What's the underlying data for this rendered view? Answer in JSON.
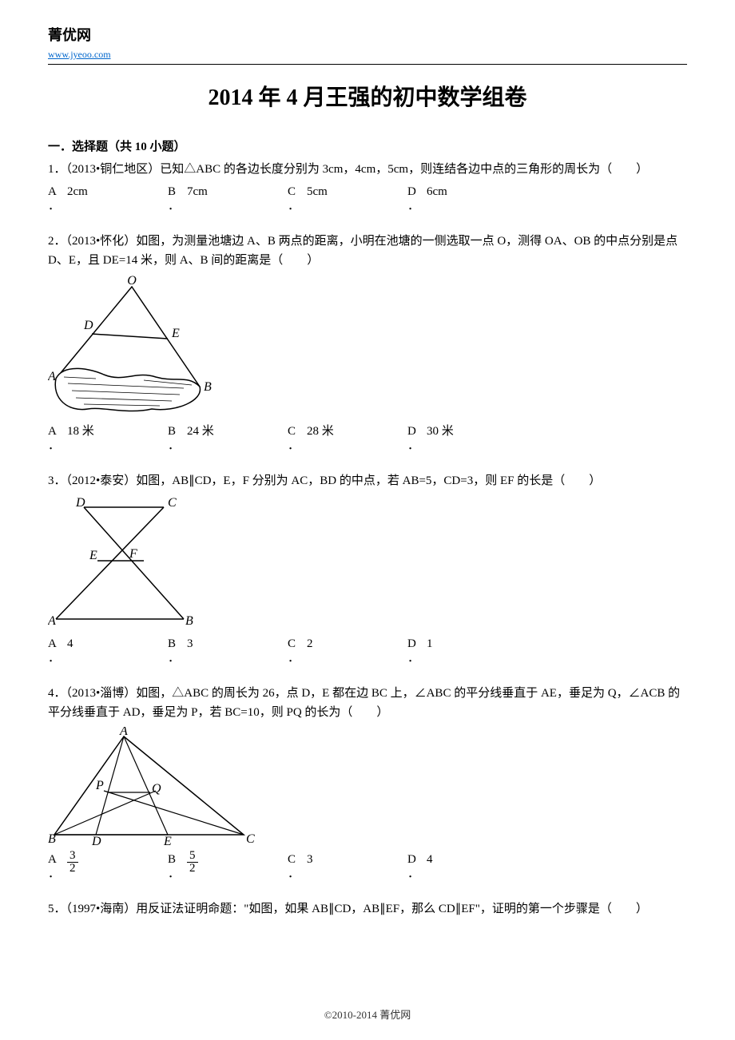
{
  "header": {
    "site_name": "菁优网",
    "site_url": "www.jyeoo.com"
  },
  "title": "2014 年 4 月王强的初中数学组卷",
  "section_heading": "一．选择题（共 10 小题）",
  "questions": [
    {
      "text": "1．（2013•铜仁地区）已知△ABC 的各边长度分别为 3cm，4cm，5cm，则连结各边中点的三角形的周长为（　　）",
      "choices": [
        "2cm",
        "7cm",
        "5cm",
        "6cm"
      ],
      "figure": null
    },
    {
      "text": "2．（2013•怀化）如图，为测量池塘边 A、B 两点的距离，小明在池塘的一侧选取一点 O，测得 OA、OB 的中点分别是点 D、E，且 DE=14 米，则 A、B 间的距离是（　　）",
      "choices": [
        "18 米",
        "24 米",
        "28 米",
        "30 米"
      ],
      "figure": "pond"
    },
    {
      "text": "3．（2012•泰安）如图，AB∥CD，E，F 分别为 AC，BD 的中点，若 AB=5，CD=3，则 EF 的长是（　　）",
      "choices": [
        "4",
        "3",
        "2",
        "1"
      ],
      "figure": "trapezoid"
    },
    {
      "text": "4．（2013•淄博）如图，△ABC 的周长为 26，点 D，E 都在边 BC 上，∠ABC 的平分线垂直于 AE，垂足为 Q，∠ACB 的平分线垂直于 AD，垂足为 P，若 BC=10，则 PQ 的长为（　　）",
      "choices": [
        "frac:3:2",
        "frac:5:2",
        "3",
        "4"
      ],
      "figure": "triangle_pq"
    },
    {
      "text": "5．（1997•海南）用反证法证明命题：\"如图，如果 AB∥CD，AB∥EF，那么 CD∥EF\"，证明的第一个步骤是（　　）",
      "choices": null,
      "figure": null
    }
  ],
  "choice_letters": [
    "A",
    "B",
    "C",
    "D"
  ],
  "footer": "©2010-2014  菁优网"
}
